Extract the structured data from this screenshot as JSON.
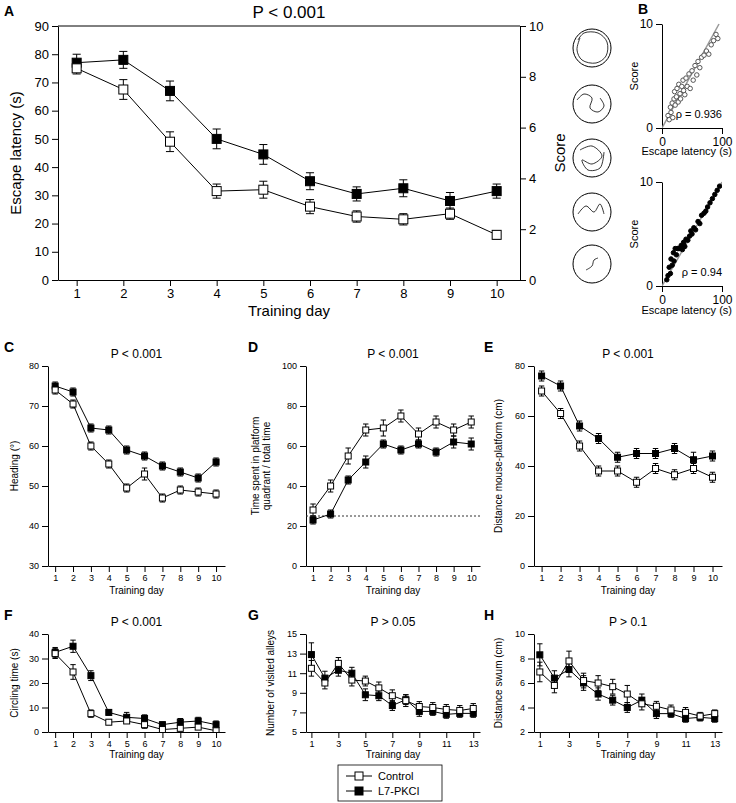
{
  "chart_data": [
    {
      "type": "line",
      "panel": "A",
      "title": "P < 0.001",
      "x_label": "Training day",
      "y_label": "Escape latency (s)",
      "y2_label": "Score",
      "legend": "bottom",
      "x": [
        1,
        2,
        3,
        4,
        5,
        6,
        7,
        8,
        9,
        10
      ],
      "xlim": [
        0.6,
        10.5
      ],
      "xticks": [
        1,
        2,
        3,
        4,
        5,
        6,
        7,
        8,
        9,
        10
      ],
      "ylim": [
        0,
        90
      ],
      "yticks": [
        0,
        10,
        20,
        30,
        40,
        50,
        60,
        70,
        80,
        90
      ],
      "y2lim": [
        0,
        10
      ],
      "y2ticks": [
        0,
        2,
        4,
        6,
        8,
        10
      ],
      "series": [
        {
          "name": "Control",
          "color": "#000000",
          "marker": "open-square",
          "line_style": "solid",
          "values": [
            75,
            67.5,
            49,
            31.5,
            32,
            26,
            22.5,
            21.5,
            23.5,
            16
          ],
          "errors": [
            2,
            3.5,
            3.5,
            2.5,
            3,
            2.5,
            2,
            2,
            2,
            1.5
          ]
        },
        {
          "name": "L7-PKCI",
          "color": "#000000",
          "marker": "filled-square",
          "line_style": "solid",
          "values": [
            77,
            78,
            67,
            50,
            44.5,
            35,
            30.5,
            32.5,
            28,
            31.5
          ],
          "errors": [
            3,
            3,
            3.5,
            3.5,
            3.5,
            3,
            2.5,
            3,
            3,
            2.5
          ]
        }
      ]
    },
    {
      "type": "scatter",
      "panel": "B",
      "x_label": "Escape latency (s)",
      "y_label": "Score",
      "annotation": "ρ = 0.936",
      "xlim": [
        0,
        100
      ],
      "xticks": [
        0,
        100
      ],
      "ylim": [
        0,
        10
      ],
      "yticks": [
        0,
        10
      ],
      "series": [
        {
          "type": "scatter",
          "color": "#555555",
          "marker": "open-circle",
          "x": [
            10,
            12,
            14,
            15,
            17,
            18,
            20,
            21,
            22,
            24,
            25,
            27,
            28,
            30,
            31,
            33,
            35,
            36,
            38,
            40,
            42,
            45,
            47,
            50,
            52,
            55,
            58,
            60,
            63,
            66,
            70,
            74,
            78,
            82,
            86,
            90,
            93
          ],
          "values": [
            1.2,
            0.8,
            2.0,
            1.5,
            2.4,
            1.0,
            2.8,
            3.5,
            2.2,
            3.0,
            3.8,
            2.5,
            4.2,
            3.3,
            2.8,
            4.0,
            4.6,
            3.6,
            3.2,
            4.8,
            4.0,
            5.2,
            3.8,
            5.5,
            4.6,
            6.0,
            5.1,
            6.4,
            5.8,
            6.8,
            7.0,
            7.4,
            7.1,
            8.0,
            8.4,
            9.0,
            8.6
          ]
        },
        {
          "type": "line",
          "color": "#999999",
          "line_style": "solid",
          "x": [
            0,
            95
          ],
          "values": [
            0,
            10
          ]
        }
      ]
    },
    {
      "type": "scatter",
      "x_label": "Escape latency (s)",
      "y_label": "Score",
      "annotation": "ρ = 0.94",
      "xlim": [
        0,
        100
      ],
      "xticks": [
        0,
        100
      ],
      "ylim": [
        0,
        10
      ],
      "yticks": [
        0,
        10
      ],
      "series": [
        {
          "type": "scatter",
          "color": "#000000",
          "marker": "filled-circle",
          "x": [
            8,
            10,
            12,
            14,
            15,
            17,
            19,
            20,
            22,
            24,
            26,
            28,
            30,
            32,
            34,
            36,
            38,
            40,
            43,
            46,
            48,
            50,
            53,
            56,
            60,
            63,
            66,
            70,
            73,
            76,
            80,
            84,
            88,
            92,
            96
          ],
          "values": [
            0.6,
            1.0,
            1.8,
            1.2,
            2.6,
            2.0,
            3.2,
            2.4,
            3.6,
            3.0,
            3.6,
            3.6,
            3.6,
            3.9,
            3.5,
            4.2,
            3.8,
            4.5,
            4.4,
            4.8,
            5.3,
            5.0,
            5.6,
            5.4,
            6.2,
            6.0,
            6.8,
            7.0,
            7.2,
            7.6,
            8.0,
            8.4,
            8.8,
            9.2,
            9.6
          ]
        },
        {
          "type": "line",
          "color": "#999999",
          "line_style": "solid",
          "x": [
            0,
            100
          ],
          "values": [
            0,
            10
          ]
        }
      ]
    },
    {
      "type": "line",
      "panel": "C",
      "title": "P < 0.001",
      "x_label": "Training day",
      "y_label": "Heading (°)",
      "x": [
        1,
        2,
        3,
        4,
        5,
        6,
        7,
        8,
        9,
        10
      ],
      "xlim": [
        0.6,
        10.5
      ],
      "xticks": [
        1,
        2,
        3,
        4,
        5,
        6,
        7,
        8,
        9,
        10
      ],
      "ylim": [
        30,
        80
      ],
      "yticks": [
        30,
        40,
        50,
        60,
        70,
        80
      ],
      "series": [
        {
          "name": "Control",
          "color": "#000000",
          "marker": "open-square",
          "line_style": "solid",
          "values": [
            74,
            70.5,
            60,
            55.5,
            49.5,
            53,
            47,
            49,
            48.5,
            48
          ],
          "errors": [
            1,
            1,
            1,
            1,
            1,
            1.5,
            1,
            1,
            1,
            1
          ]
        },
        {
          "name": "L7-PKCI",
          "color": "#000000",
          "marker": "filled-square",
          "line_style": "solid",
          "values": [
            75,
            73.5,
            64.5,
            64,
            59,
            57.5,
            55,
            53.5,
            52,
            56
          ],
          "errors": [
            1,
            1,
            1,
            1,
            1,
            1,
            1,
            1,
            1,
            1
          ]
        }
      ]
    },
    {
      "type": "line",
      "panel": "D",
      "title": "P < 0.001",
      "x_label": "Training day",
      "y_label": "Time spent in platform quadrant / total time",
      "x": [
        1,
        2,
        3,
        4,
        5,
        6,
        7,
        8,
        9,
        10
      ],
      "xlim": [
        0.6,
        10.5
      ],
      "xticks": [
        1,
        2,
        3,
        4,
        5,
        6,
        7,
        8,
        9,
        10
      ],
      "ylim": [
        0,
        100
      ],
      "yticks": [
        0,
        20,
        40,
        60,
        80,
        100
      ],
      "reference_y": 25,
      "series": [
        {
          "name": "Control",
          "color": "#000000",
          "marker": "open-square",
          "line_style": "solid",
          "values": [
            28,
            40,
            55,
            68,
            69,
            75,
            66,
            72,
            68,
            72
          ],
          "errors": [
            3,
            3,
            4,
            3,
            4,
            3,
            3,
            3,
            3,
            3
          ]
        },
        {
          "name": "L7-PKCI",
          "color": "#000000",
          "marker": "filled-square",
          "line_style": "solid",
          "values": [
            23,
            26,
            43,
            52,
            61,
            58,
            61,
            57,
            62,
            61
          ],
          "errors": [
            2,
            2,
            2,
            3,
            2,
            2,
            2,
            2,
            3,
            3
          ]
        }
      ]
    },
    {
      "type": "line",
      "panel": "E",
      "title": "P < 0.001",
      "x_label": "Training day",
      "y_label": "Distance mouse-platform (cm)",
      "x": [
        1,
        2,
        3,
        4,
        5,
        6,
        7,
        8,
        9,
        10
      ],
      "xlim": [
        0.6,
        10.5
      ],
      "xticks": [
        1,
        2,
        3,
        4,
        5,
        6,
        7,
        8,
        9,
        10
      ],
      "ylim": [
        0,
        80
      ],
      "yticks": [
        0,
        20,
        40,
        60,
        80
      ],
      "series": [
        {
          "name": "Control",
          "color": "#000000",
          "marker": "open-square",
          "line_style": "solid",
          "values": [
            70,
            61,
            48,
            38,
            38,
            33.5,
            39,
            36.5,
            39,
            35.5
          ],
          "errors": [
            2,
            2,
            2,
            2,
            2,
            2,
            2,
            2,
            2,
            2
          ]
        },
        {
          "name": "L7-PKCI",
          "color": "#000000",
          "marker": "filled-square",
          "line_style": "solid",
          "values": [
            76,
            72,
            56,
            51,
            43.5,
            45,
            45,
            47,
            42.5,
            44
          ],
          "errors": [
            2,
            2,
            2,
            2,
            2,
            2,
            2,
            2,
            3,
            2
          ]
        }
      ]
    },
    {
      "type": "line",
      "panel": "F",
      "title": "P < 0.001",
      "x_label": "Training day",
      "y_label": "Circling time (s)",
      "x": [
        1,
        2,
        3,
        4,
        5,
        6,
        7,
        8,
        9,
        10
      ],
      "xlim": [
        0.6,
        10.5
      ],
      "xticks": [
        1,
        2,
        3,
        4,
        5,
        6,
        7,
        8,
        9,
        10
      ],
      "ylim": [
        0,
        40
      ],
      "yticks": [
        0,
        10,
        20,
        30,
        40
      ],
      "series": [
        {
          "name": "Control",
          "color": "#000000",
          "marker": "open-square",
          "line_style": "solid",
          "values": [
            32,
            24.5,
            7.5,
            4,
            4.5,
            3,
            1,
            1.5,
            2,
            0.5
          ],
          "errors": [
            2,
            3,
            1.5,
            1,
            1,
            1.5,
            0.8,
            1,
            1,
            0.5
          ]
        },
        {
          "name": "L7-PKCI",
          "color": "#000000",
          "marker": "filled-square",
          "line_style": "solid",
          "values": [
            32.5,
            35,
            23,
            8,
            6,
            5.5,
            3,
            4,
            4.5,
            3
          ],
          "errors": [
            2,
            2.5,
            2,
            1,
            2,
            1.5,
            1,
            1.5,
            1.5,
            1.5
          ]
        }
      ]
    },
    {
      "type": "line",
      "panel": "G",
      "title": "P > 0.05",
      "x_label": "Training day",
      "y_label": "Number of visited alleys",
      "x": [
        1,
        2,
        3,
        4,
        5,
        6,
        7,
        8,
        9,
        10,
        11,
        12,
        13
      ],
      "xlim": [
        0.6,
        13.5
      ],
      "xticks": [
        1,
        3,
        5,
        7,
        9,
        11,
        13
      ],
      "ylim": [
        5,
        15
      ],
      "yticks": [
        5,
        7,
        9,
        11,
        13,
        15
      ],
      "series": [
        {
          "name": "Control",
          "color": "#000000",
          "marker": "open-square",
          "line_style": "solid",
          "values": [
            11.5,
            10,
            12,
            10.3,
            10.2,
            9.5,
            8.7,
            8.2,
            7.6,
            7.5,
            7.3,
            7.2,
            7.4
          ],
          "errors": [
            0.8,
            0.6,
            0.6,
            0.6,
            0.5,
            0.6,
            0.6,
            0.6,
            0.5,
            0.5,
            0.5,
            0.5,
            0.5
          ]
        },
        {
          "name": "L7-PKCI",
          "color": "#000000",
          "marker": "filled-square",
          "line_style": "solid",
          "values": [
            12.9,
            10.5,
            11.3,
            11,
            8.8,
            8.7,
            7.7,
            8.3,
            7.1,
            7.1,
            6.8,
            6.9,
            6.9
          ],
          "errors": [
            1.2,
            0.7,
            0.6,
            0.6,
            0.6,
            0.5,
            0.5,
            0.5,
            0.5,
            0.4,
            0.4,
            0.4,
            0.4
          ]
        }
      ]
    },
    {
      "type": "line",
      "panel": "H",
      "title": "P > 0.1",
      "x_label": "Training day",
      "y_label": "Distance swum (cm)",
      "x": [
        1,
        2,
        3,
        4,
        5,
        6,
        7,
        8,
        9,
        10,
        11,
        12,
        13
      ],
      "xlim": [
        0.6,
        13.5
      ],
      "xticks": [
        1,
        3,
        5,
        7,
        9,
        11,
        13
      ],
      "ylim": [
        2,
        10
      ],
      "yticks": [
        2,
        4,
        6,
        8,
        10
      ],
      "series": [
        {
          "name": "Control",
          "color": "#000000",
          "marker": "open-square",
          "line_style": "solid",
          "values": [
            6.9,
            5.8,
            7.8,
            6.2,
            6.0,
            5.7,
            5.1,
            4.3,
            4.1,
            3.8,
            3.6,
            3.3,
            3.5
          ],
          "errors": [
            0.8,
            0.6,
            0.8,
            0.6,
            0.6,
            0.6,
            0.7,
            0.5,
            0.4,
            0.4,
            0.4,
            0.3,
            0.3
          ]
        },
        {
          "name": "L7-PKCI",
          "color": "#000000",
          "marker": "filled-square",
          "line_style": "solid",
          "values": [
            8.3,
            6.4,
            7.1,
            6.0,
            5.1,
            4.6,
            4.0,
            4.6,
            3.5,
            3.5,
            3.1,
            3.2,
            3.1
          ],
          "errors": [
            0.9,
            0.6,
            0.6,
            0.6,
            0.5,
            0.4,
            0.4,
            0.5,
            0.4,
            0.3,
            0.3,
            0.3,
            0.3
          ]
        }
      ]
    }
  ]
}
